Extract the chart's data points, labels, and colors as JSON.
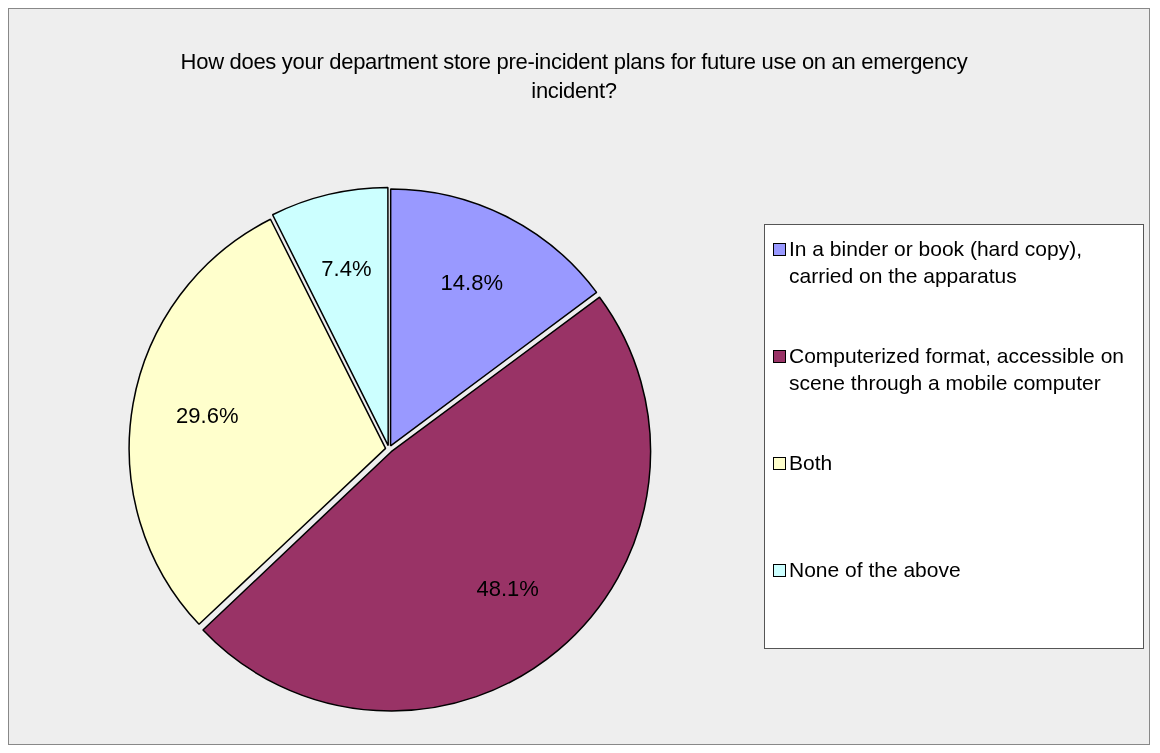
{
  "chart_data": {
    "type": "pie",
    "title": "How does your department store pre-incident plans for future use on an emergency incident?",
    "categories": [
      "In a binder or book (hard copy), carried on the apparatus",
      "Computerized format, accessible on scene through a mobile computer",
      "Both",
      "None of the above"
    ],
    "values": [
      14.8,
      48.1,
      29.6,
      7.4
    ],
    "colors": [
      "#9999ff",
      "#993366",
      "#ffffcc",
      "#ccffff"
    ],
    "value_labels": [
      "14.8%",
      "48.1%",
      "29.6%",
      "7.4%"
    ],
    "legend": "right"
  }
}
